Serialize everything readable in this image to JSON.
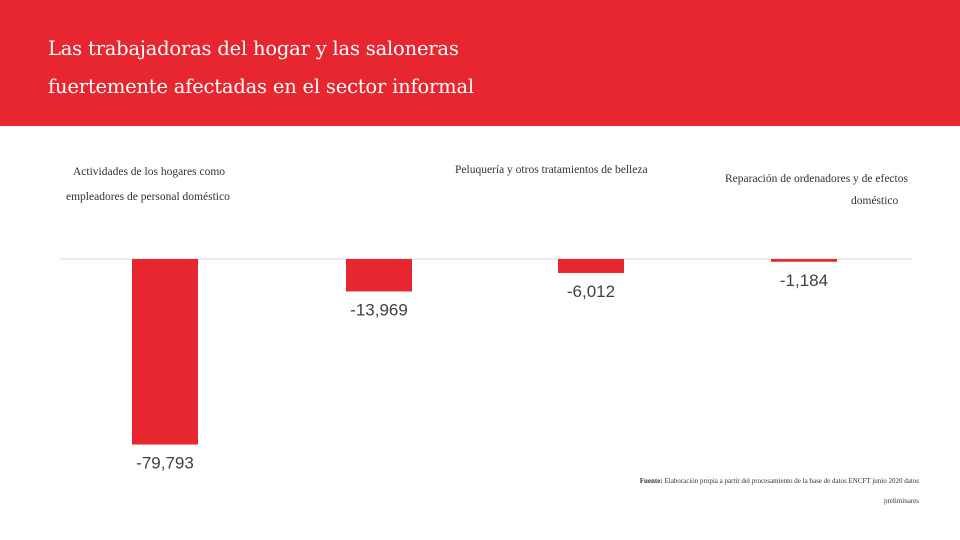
{
  "header": {
    "title_line1": "Las trabajadoras del hogar y las saloneras",
    "title_line2": "fuertemente afectadas en el sector informal"
  },
  "colors": {
    "banner": "#e8262f",
    "bar": "#e8262f",
    "axis": "#d9d9d9"
  },
  "chart_data": {
    "type": "bar",
    "categories": [
      "Actividades de los hogares como empleadores de personal doméstico",
      "",
      "Peluquería y otros tratamientos de belleza",
      "Reparación de ordenadores y de efectos doméstico"
    ],
    "category_label_lines": [
      [
        "Actividades de los hogares como",
        "empleadores de personal doméstico"
      ],
      [],
      [
        "Peluquería y otros tratamientos de belleza"
      ],
      [
        "Reparación de ordenadores y de efectos",
        "doméstico"
      ]
    ],
    "values": [
      -79793,
      -13969,
      -6012,
      -1184
    ],
    "value_labels": [
      "-79,793",
      "-13,969",
      "-6,012",
      "-1,184"
    ],
    "title": "",
    "xlabel": "",
    "ylabel": "",
    "ylim": [
      -80000,
      0
    ],
    "grid": false,
    "legend": "none"
  },
  "source": {
    "label": "Fuente:",
    "text_line1": "Elaboración propia a partir del procesamiento de la base de datos ENCFT junio 2020 datos",
    "text_line2": "preliminares"
  }
}
